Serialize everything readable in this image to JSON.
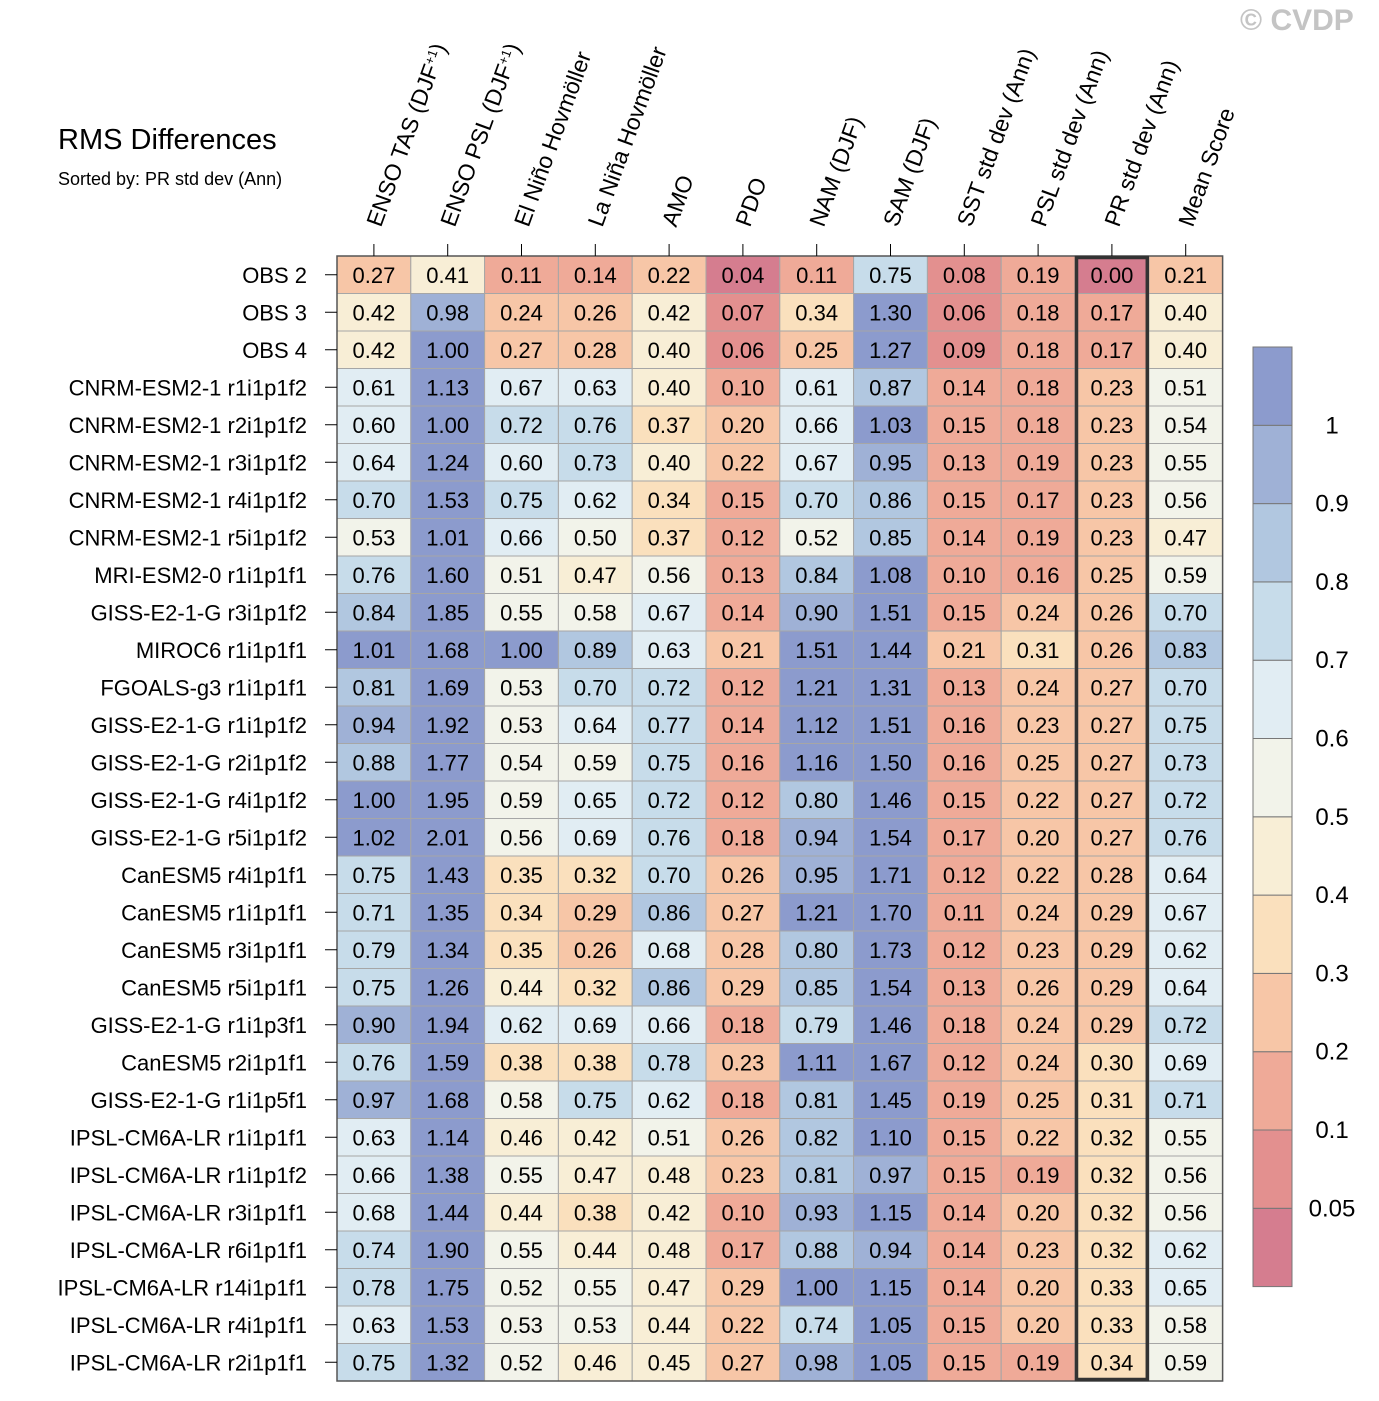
{
  "watermark": "© CVDP",
  "chart_data": {
    "type": "heatmap",
    "title": "RMS Differences",
    "subtitle": "Sorted by: PR std dev (Ann)",
    "columns": [
      {
        "label": "ENSO TAS (DJF",
        "sup": "+1",
        "tail": ")"
      },
      {
        "label": "ENSO PSL (DJF",
        "sup": "+1",
        "tail": ")"
      },
      {
        "label": "El Niño Hovmöller"
      },
      {
        "label": "La Niña Hovmöller"
      },
      {
        "label": "AMO"
      },
      {
        "label": "PDO"
      },
      {
        "label": "NAM (DJF)"
      },
      {
        "label": "SAM (DJF)"
      },
      {
        "label": "SST std dev (Ann)"
      },
      {
        "label": "PSL std dev (Ann)"
      },
      {
        "label": "PR std dev (Ann)"
      },
      {
        "label": "Mean Score"
      }
    ],
    "highlighted_column": "PR std dev (Ann)",
    "rows": [
      "OBS 2",
      "OBS 3",
      "OBS 4",
      "CNRM-ESM2-1 r1i1p1f2",
      "CNRM-ESM2-1 r2i1p1f2",
      "CNRM-ESM2-1 r3i1p1f2",
      "CNRM-ESM2-1 r4i1p1f2",
      "CNRM-ESM2-1 r5i1p1f2",
      "MRI-ESM2-0 r1i1p1f1",
      "GISS-E2-1-G r3i1p1f2",
      "MIROC6 r1i1p1f1",
      "FGOALS-g3 r1i1p1f1",
      "GISS-E2-1-G r1i1p1f2",
      "GISS-E2-1-G r2i1p1f2",
      "GISS-E2-1-G r4i1p1f2",
      "GISS-E2-1-G r5i1p1f2",
      "CanESM5 r4i1p1f1",
      "CanESM5 r1i1p1f1",
      "CanESM5 r3i1p1f1",
      "CanESM5 r5i1p1f1",
      "GISS-E2-1-G r1i1p3f1",
      "CanESM5 r2i1p1f1",
      "GISS-E2-1-G r1i1p5f1",
      "IPSL-CM6A-LR r1i1p1f1",
      "IPSL-CM6A-LR r1i1p1f2",
      "IPSL-CM6A-LR r3i1p1f1",
      "IPSL-CM6A-LR r6i1p1f1",
      "IPSL-CM6A-LR r14i1p1f1",
      "IPSL-CM6A-LR r4i1p1f1",
      "IPSL-CM6A-LR r2i1p1f1"
    ],
    "values": [
      [
        "0.27",
        "0.41",
        "0.11",
        "0.14",
        "0.22",
        "0.04",
        "0.11",
        "0.75",
        "0.08",
        "0.19",
        "0.00",
        "0.21"
      ],
      [
        "0.42",
        "0.98",
        "0.24",
        "0.26",
        "0.42",
        "0.07",
        "0.34",
        "1.30",
        "0.06",
        "0.18",
        "0.17",
        "0.40"
      ],
      [
        "0.42",
        "1.00",
        "0.27",
        "0.28",
        "0.40",
        "0.06",
        "0.25",
        "1.27",
        "0.09",
        "0.18",
        "0.17",
        "0.40"
      ],
      [
        "0.61",
        "1.13",
        "0.67",
        "0.63",
        "0.40",
        "0.10",
        "0.61",
        "0.87",
        "0.14",
        "0.18",
        "0.23",
        "0.51"
      ],
      [
        "0.60",
        "1.00",
        "0.72",
        "0.76",
        "0.37",
        "0.20",
        "0.66",
        "1.03",
        "0.15",
        "0.18",
        "0.23",
        "0.54"
      ],
      [
        "0.64",
        "1.24",
        "0.60",
        "0.73",
        "0.40",
        "0.22",
        "0.67",
        "0.95",
        "0.13",
        "0.19",
        "0.23",
        "0.55"
      ],
      [
        "0.70",
        "1.53",
        "0.75",
        "0.62",
        "0.34",
        "0.15",
        "0.70",
        "0.86",
        "0.15",
        "0.17",
        "0.23",
        "0.56"
      ],
      [
        "0.53",
        "1.01",
        "0.66",
        "0.50",
        "0.37",
        "0.12",
        "0.52",
        "0.85",
        "0.14",
        "0.19",
        "0.23",
        "0.47"
      ],
      [
        "0.76",
        "1.60",
        "0.51",
        "0.47",
        "0.56",
        "0.13",
        "0.84",
        "1.08",
        "0.10",
        "0.16",
        "0.25",
        "0.59"
      ],
      [
        "0.84",
        "1.85",
        "0.55",
        "0.58",
        "0.67",
        "0.14",
        "0.90",
        "1.51",
        "0.15",
        "0.24",
        "0.26",
        "0.70"
      ],
      [
        "1.01",
        "1.68",
        "1.00",
        "0.89",
        "0.63",
        "0.21",
        "1.51",
        "1.44",
        "0.21",
        "0.31",
        "0.26",
        "0.83"
      ],
      [
        "0.81",
        "1.69",
        "0.53",
        "0.70",
        "0.72",
        "0.12",
        "1.21",
        "1.31",
        "0.13",
        "0.24",
        "0.27",
        "0.70"
      ],
      [
        "0.94",
        "1.92",
        "0.53",
        "0.64",
        "0.77",
        "0.14",
        "1.12",
        "1.51",
        "0.16",
        "0.23",
        "0.27",
        "0.75"
      ],
      [
        "0.88",
        "1.77",
        "0.54",
        "0.59",
        "0.75",
        "0.16",
        "1.16",
        "1.50",
        "0.16",
        "0.25",
        "0.27",
        "0.73"
      ],
      [
        "1.00",
        "1.95",
        "0.59",
        "0.65",
        "0.72",
        "0.12",
        "0.80",
        "1.46",
        "0.15",
        "0.22",
        "0.27",
        "0.72"
      ],
      [
        "1.02",
        "2.01",
        "0.56",
        "0.69",
        "0.76",
        "0.18",
        "0.94",
        "1.54",
        "0.17",
        "0.20",
        "0.27",
        "0.76"
      ],
      [
        "0.75",
        "1.43",
        "0.35",
        "0.32",
        "0.70",
        "0.26",
        "0.95",
        "1.71",
        "0.12",
        "0.22",
        "0.28",
        "0.64"
      ],
      [
        "0.71",
        "1.35",
        "0.34",
        "0.29",
        "0.86",
        "0.27",
        "1.21",
        "1.70",
        "0.11",
        "0.24",
        "0.29",
        "0.67"
      ],
      [
        "0.79",
        "1.34",
        "0.35",
        "0.26",
        "0.68",
        "0.28",
        "0.80",
        "1.73",
        "0.12",
        "0.23",
        "0.29",
        "0.62"
      ],
      [
        "0.75",
        "1.26",
        "0.44",
        "0.32",
        "0.86",
        "0.29",
        "0.85",
        "1.54",
        "0.13",
        "0.26",
        "0.29",
        "0.64"
      ],
      [
        "0.90",
        "1.94",
        "0.62",
        "0.69",
        "0.66",
        "0.18",
        "0.79",
        "1.46",
        "0.18",
        "0.24",
        "0.29",
        "0.72"
      ],
      [
        "0.76",
        "1.59",
        "0.38",
        "0.38",
        "0.78",
        "0.23",
        "1.11",
        "1.67",
        "0.12",
        "0.24",
        "0.30",
        "0.69"
      ],
      [
        "0.97",
        "1.68",
        "0.58",
        "0.75",
        "0.62",
        "0.18",
        "0.81",
        "1.45",
        "0.19",
        "0.25",
        "0.31",
        "0.71"
      ],
      [
        "0.63",
        "1.14",
        "0.46",
        "0.42",
        "0.51",
        "0.26",
        "0.82",
        "1.10",
        "0.15",
        "0.22",
        "0.32",
        "0.55"
      ],
      [
        "0.66",
        "1.38",
        "0.55",
        "0.47",
        "0.48",
        "0.23",
        "0.81",
        "0.97",
        "0.15",
        "0.19",
        "0.32",
        "0.56"
      ],
      [
        "0.68",
        "1.44",
        "0.44",
        "0.38",
        "0.42",
        "0.10",
        "0.93",
        "1.15",
        "0.14",
        "0.20",
        "0.32",
        "0.56"
      ],
      [
        "0.74",
        "1.90",
        "0.55",
        "0.44",
        "0.48",
        "0.17",
        "0.88",
        "0.94",
        "0.14",
        "0.23",
        "0.32",
        "0.62"
      ],
      [
        "0.78",
        "1.75",
        "0.52",
        "0.55",
        "0.47",
        "0.29",
        "1.00",
        "1.15",
        "0.14",
        "0.20",
        "0.33",
        "0.65"
      ],
      [
        "0.63",
        "1.53",
        "0.53",
        "0.53",
        "0.44",
        "0.22",
        "0.74",
        "1.05",
        "0.15",
        "0.20",
        "0.33",
        "0.58"
      ],
      [
        "0.75",
        "1.32",
        "0.52",
        "0.46",
        "0.45",
        "0.27",
        "0.98",
        "1.05",
        "0.15",
        "0.19",
        "0.34",
        "0.59"
      ]
    ],
    "colorbar": {
      "boundaries": [
        0.05,
        0.1,
        0.2,
        0.3,
        0.4,
        0.5,
        0.6,
        0.7,
        0.8,
        0.9,
        1
      ],
      "labels": [
        "0.05",
        "0.1",
        "0.2",
        "0.3",
        "0.4",
        "0.5",
        "0.6",
        "0.7",
        "0.8",
        "0.9",
        "1"
      ],
      "colors": [
        "#d57d8f",
        "#e3908f",
        "#efaa98",
        "#f7c6a7",
        "#fae0bd",
        "#f8eed6",
        "#f2f3ea",
        "#e1edf3",
        "#c7dcea",
        "#b1c7e0",
        "#9fb1d6",
        "#8c9bcd"
      ]
    }
  }
}
